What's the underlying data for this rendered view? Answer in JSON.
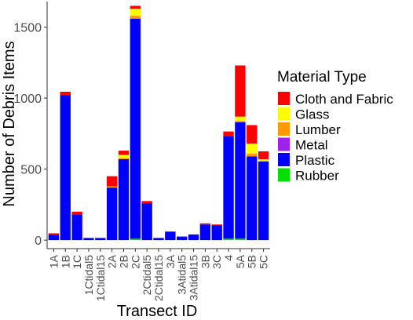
{
  "chart_data": {
    "type": "bar",
    "stacked": true,
    "categories": [
      "1A",
      "1B",
      "1C",
      "1Ctidal5",
      "1Ctidal15",
      "2A",
      "2B",
      "2C",
      "2Ctidal5",
      "2Ctidal15",
      "3A",
      "3Atidal5",
      "3Atidal15",
      "3B",
      "3C",
      "4",
      "5A",
      "5B",
      "5C"
    ],
    "series": [
      {
        "name": "Rubber",
        "color": "#00e000",
        "values": [
          0,
          0,
          0,
          0,
          0,
          0,
          0,
          10,
          0,
          0,
          0,
          0,
          0,
          0,
          0,
          10,
          10,
          0,
          0
        ]
      },
      {
        "name": "Plastic",
        "color": "#0000ff",
        "values": [
          40,
          1020,
          180,
          15,
          15,
          370,
          570,
          1550,
          260,
          15,
          60,
          25,
          40,
          110,
          105,
          720,
          820,
          590,
          555
        ]
      },
      {
        "name": "Metal",
        "color": "#a020f0",
        "values": [
          0,
          0,
          0,
          0,
          0,
          0,
          0,
          0,
          0,
          0,
          0,
          0,
          0,
          0,
          0,
          0,
          0,
          0,
          0
        ]
      },
      {
        "name": "Lumber",
        "color": "#ff9900",
        "values": [
          0,
          0,
          0,
          0,
          0,
          10,
          10,
          20,
          0,
          0,
          0,
          0,
          0,
          0,
          0,
          0,
          10,
          20,
          0
        ]
      },
      {
        "name": "Glass",
        "color": "#ffff00",
        "values": [
          0,
          0,
          0,
          0,
          0,
          0,
          20,
          50,
          0,
          0,
          0,
          0,
          0,
          0,
          0,
          0,
          30,
          70,
          15
        ]
      },
      {
        "name": "Cloth and Fabric",
        "color": "#ff0000",
        "values": [
          8,
          25,
          20,
          0,
          0,
          70,
          30,
          20,
          15,
          0,
          0,
          0,
          0,
          8,
          5,
          35,
          360,
          130,
          55
        ]
      }
    ],
    "legend_order": [
      "Cloth and Fabric",
      "Glass",
      "Lumber",
      "Metal",
      "Plastic",
      "Rubber"
    ],
    "xlabel": "Transect ID",
    "ylabel": "Number of Debris Items",
    "legend_title": "Material Type",
    "legend_position": "right",
    "ylim": [
      -60,
      1680
    ],
    "yticks": [
      0,
      500,
      1000,
      1500
    ],
    "grid": false
  }
}
